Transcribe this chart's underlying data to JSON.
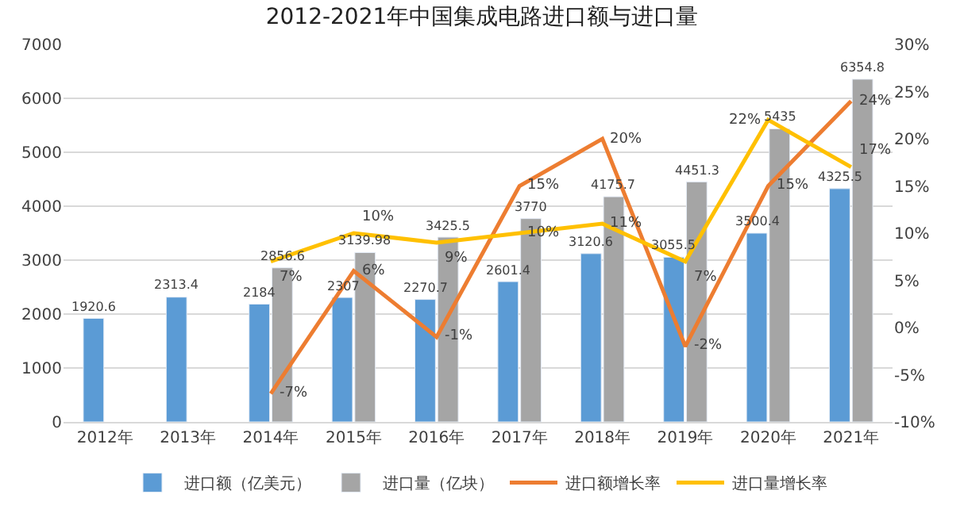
{
  "chart_data": {
    "type": "bar",
    "title": "2012-2021年中国集成电路进口额与进口量",
    "categories": [
      "2012年",
      "2013年",
      "2014年",
      "2015年",
      "2016年",
      "2017年",
      "2018年",
      "2019年",
      "2020年",
      "2021年"
    ],
    "series": [
      {
        "name": "进口额（亿美元）",
        "color": "#5b9bd5",
        "values": [
          1920.6,
          2313.4,
          2184,
          2307,
          2270.7,
          2601.4,
          3120.6,
          3055.5,
          3500.4,
          4325.5
        ],
        "value_labels": [
          "1920.6",
          "2313.4",
          "2184",
          "2307",
          "2270.7",
          "2601.4",
          "3120.6",
          "3055.5",
          "3500.4",
          "4325.5"
        ]
      },
      {
        "name": "进口量（亿块）",
        "color": "#a5a5a5",
        "values": [
          null,
          null,
          2856.6,
          3139.98,
          3425.5,
          3770,
          4175.7,
          4451.3,
          5435,
          6354.8
        ],
        "value_labels": [
          null,
          null,
          "2856.6",
          "3139.98",
          "3425.5",
          "3770",
          "4175.7",
          "4451.3",
          "5435",
          "6354.8"
        ]
      },
      {
        "name": "进口额增长率",
        "type": "line",
        "axis": "y2",
        "color": "#ed7d31",
        "values": [
          null,
          null,
          -7,
          6,
          -1,
          15,
          20,
          -2,
          15,
          24
        ],
        "value_labels": [
          null,
          null,
          "-7%",
          "6%",
          "-1%",
          "15%",
          "20%",
          "-2%",
          "15%",
          "24%"
        ]
      },
      {
        "name": "进口量增长率",
        "type": "line",
        "axis": "y2",
        "color": "#ffc000",
        "values": [
          null,
          null,
          7,
          10,
          9,
          10,
          11,
          7,
          22,
          17
        ],
        "value_labels": [
          null,
          null,
          "7%",
          "10%",
          "9%",
          "10%",
          "11%",
          "7%",
          "22%",
          "17%"
        ]
      }
    ],
    "ylim": [
      0,
      7000
    ],
    "yticks": [
      0,
      1000,
      2000,
      3000,
      4000,
      5000,
      6000,
      7000
    ],
    "y2lim": [
      -10,
      30
    ],
    "y2ticks": [
      {
        "value": -10,
        "label": "-10%"
      },
      {
        "value": -5,
        "label": "-5%"
      },
      {
        "value": 0,
        "label": "0%"
      },
      {
        "value": 5,
        "label": "5%"
      },
      {
        "value": 10,
        "label": "10%"
      },
      {
        "value": 15,
        "label": "15%"
      },
      {
        "value": 20,
        "label": "20%"
      },
      {
        "value": 25,
        "label": "25%"
      },
      {
        "value": 30,
        "label": "30%"
      }
    ],
    "grid": "y",
    "legend": "bottom",
    "marker": "none",
    "line_style": "solid"
  }
}
